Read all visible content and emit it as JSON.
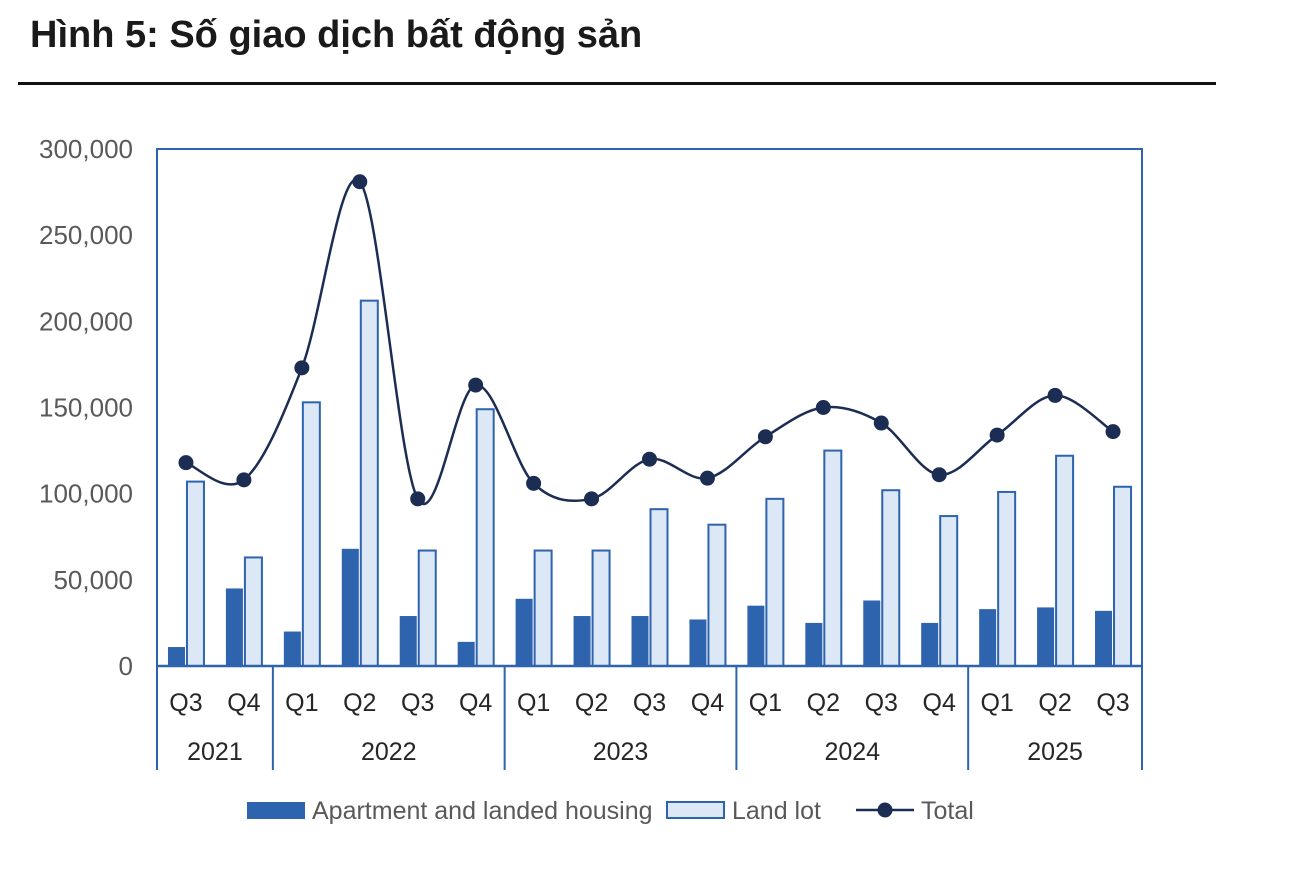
{
  "title": "Hình 5: Số giao dịch bất động sản",
  "chart_data": {
    "type": "bar",
    "colors": {
      "apartment": "#2E63AE",
      "land_fill": "#DCE8F6",
      "land_edge": "#2E63AE",
      "total": "#1C2D54",
      "axis": "#2E63AE"
    },
    "categories": [
      "Q3",
      "Q4",
      "Q1",
      "Q2",
      "Q3",
      "Q4",
      "Q1",
      "Q2",
      "Q3",
      "Q4",
      "Q1",
      "Q2",
      "Q3",
      "Q4",
      "Q1",
      "Q2",
      "Q3"
    ],
    "years": [
      {
        "label": "2021",
        "count": 2
      },
      {
        "label": "2022",
        "count": 4
      },
      {
        "label": "2023",
        "count": 4
      },
      {
        "label": "2024",
        "count": 4
      },
      {
        "label": "2025",
        "count": 3
      }
    ],
    "ylim": [
      0,
      300000
    ],
    "yticks": [
      0,
      50000,
      100000,
      150000,
      200000,
      250000,
      300000
    ],
    "ytick_labels": [
      "0",
      "50,000",
      "100,000",
      "150,000",
      "200,000",
      "250,000",
      "300,000"
    ],
    "series": [
      {
        "name": "Apartment and landed housing",
        "kind": "bar",
        "values": [
          11000,
          45000,
          20000,
          68000,
          29000,
          14000,
          39000,
          29000,
          29000,
          27000,
          35000,
          25000,
          38000,
          25000,
          33000,
          34000,
          32000
        ]
      },
      {
        "name": "Land lot",
        "kind": "bar",
        "values": [
          107000,
          63000,
          153000,
          212000,
          67000,
          149000,
          67000,
          67000,
          91000,
          82000,
          97000,
          125000,
          102000,
          87000,
          101000,
          122000,
          104000
        ]
      },
      {
        "name": "Total",
        "kind": "line",
        "values": [
          118000,
          108000,
          173000,
          281000,
          97000,
          163000,
          106000,
          97000,
          120000,
          109000,
          133000,
          150000,
          141000,
          111000,
          134000,
          157000,
          136000
        ]
      }
    ],
    "legend_position": "bottom"
  }
}
